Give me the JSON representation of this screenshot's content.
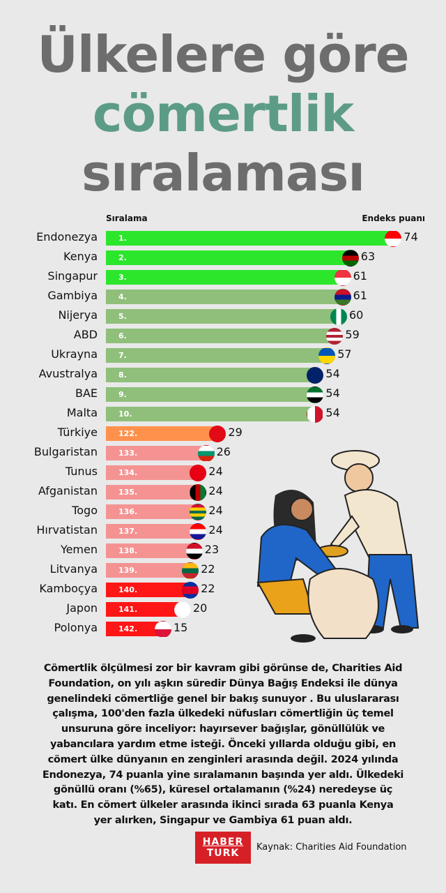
{
  "title": {
    "line1": "Ülkelere göre",
    "line2": "cömertlik",
    "line3": "sıralaması"
  },
  "colors": {
    "title_gray": "#6d6d6d",
    "title_teal": "#5c9c87",
    "top3": "#2ce62c",
    "top10": "#8fbf7a",
    "turkey": "#ff914d",
    "low": "#f59393",
    "bottom3": "#ff1616"
  },
  "chart_data": {
    "type": "bar",
    "orientation": "horizontal",
    "column_headers": {
      "rank": "Sıralama",
      "score": "Endeks puanı"
    },
    "rows": [
      {
        "country": "Endonezya",
        "rank": "1.",
        "value": 74,
        "color": "#2ce62c",
        "flag": [
          "#ff0000",
          "#ffffff"
        ]
      },
      {
        "country": "Kenya",
        "rank": "2.",
        "value": 63,
        "color": "#2ce62c",
        "flag": [
          "#000000",
          "#bb0000",
          "#006600"
        ]
      },
      {
        "country": "Singapur",
        "rank": "3.",
        "value": 61,
        "color": "#2ce62c",
        "flag": [
          "#ef3340",
          "#ffffff"
        ]
      },
      {
        "country": "Gambiya",
        "rank": "4.",
        "value": 61,
        "color": "#8fbf7a",
        "flag": [
          "#ce1126",
          "#0c1c8c",
          "#3a7728"
        ]
      },
      {
        "country": "Nijerya",
        "rank": "5.",
        "value": 60,
        "color": "#8fbf7a",
        "flag": [
          "#008751",
          "#ffffff",
          "#008751"
        ],
        "vertical": true
      },
      {
        "country": "ABD",
        "rank": "6.",
        "value": 59,
        "color": "#8fbf7a",
        "flag": [
          "#b22234",
          "#ffffff",
          "#b22234",
          "#ffffff",
          "#b22234"
        ]
      },
      {
        "country": "Ukrayna",
        "rank": "7.",
        "value": 57,
        "color": "#8fbf7a",
        "flag": [
          "#0057b7",
          "#ffd700"
        ]
      },
      {
        "country": "Avustralya",
        "rank": "8.",
        "value": 54,
        "color": "#8fbf7a",
        "flag": [
          "#012169",
          "#012169"
        ]
      },
      {
        "country": "BAE",
        "rank": "9.",
        "value": 54,
        "color": "#8fbf7a",
        "flag": [
          "#00732f",
          "#ffffff",
          "#000000"
        ]
      },
      {
        "country": "Malta",
        "rank": "10.",
        "value": 54,
        "color": "#8fbf7a",
        "flag": [
          "#ffffff",
          "#cf142b"
        ],
        "vertical": true
      },
      {
        "country": "Türkiye",
        "rank": "122.",
        "value": 29,
        "color": "#ff914d",
        "flag": [
          "#e30a17",
          "#e30a17"
        ]
      },
      {
        "country": "Bulgaristan",
        "rank": "133.",
        "value": 26,
        "color": "#f59393",
        "flag": [
          "#ffffff",
          "#00966e",
          "#d62612"
        ]
      },
      {
        "country": "Tunus",
        "rank": "134.",
        "value": 24,
        "color": "#f59393",
        "flag": [
          "#e70013",
          "#e70013"
        ]
      },
      {
        "country": "Afganistan",
        "rank": "135.",
        "value": 24,
        "color": "#f59393",
        "flag": [
          "#000000",
          "#be0000",
          "#007a36"
        ],
        "vertical": true
      },
      {
        "country": "Togo",
        "rank": "136.",
        "value": 24,
        "color": "#f59393",
        "flag": [
          "#d21034",
          "#ffce00",
          "#006a4e",
          "#ffce00",
          "#006a4e"
        ]
      },
      {
        "country": "Hırvatistan",
        "rank": "137.",
        "value": 24,
        "color": "#f59393",
        "flag": [
          "#ff0000",
          "#ffffff",
          "#171796"
        ]
      },
      {
        "country": "Yemen",
        "rank": "138.",
        "value": 23,
        "color": "#f59393",
        "flag": [
          "#ce1126",
          "#ffffff",
          "#000000"
        ]
      },
      {
        "country": "Litvanya",
        "rank": "139.",
        "value": 22,
        "color": "#f59393",
        "flag": [
          "#fdb913",
          "#006a44",
          "#c1272d"
        ]
      },
      {
        "country": "Kamboçya",
        "rank": "140.",
        "value": 22,
        "color": "#ff1616",
        "flag": [
          "#032ea1",
          "#e00025",
          "#e00025",
          "#032ea1"
        ]
      },
      {
        "country": "Japon",
        "rank": "141.",
        "value": 20,
        "color": "#ff1616",
        "flag": [
          "#ffffff",
          "#ffffff"
        ]
      },
      {
        "country": "Polonya",
        "rank": "142.",
        "value": 15,
        "color": "#ff1616",
        "flag": [
          "#ffffff",
          "#dc143c"
        ]
      }
    ]
  },
  "paragraph": [
    "Cömertlik ölçülmesi zor bir kavram gibi görünse de, Charities Aid",
    "Foundation, on yılı aşkın süredir Dünya Bağış Endeksi ile dünya",
    "genelindeki cömertliğe genel bir bakış sunuyor . Bu uluslararası",
    "çalışma, 100'den fazla ülkedeki nüfusları cömertliğin üç temel",
    "unsuruna göre inceliyor: hayırsever bağışlar, gönüllülük ve",
    "yabancılara yardım etme isteği. Önceki yıllarda olduğu gibi, en",
    "cömert ülke dünyanın en zenginleri arasında değil. 2024 yılında",
    "Endonezya, 74 puanla yine sıralamanın başında yer aldı. Ülkedeki",
    "gönüllü oranı (%65), küresel ortalamanın (%24) neredeyse üç",
    "katı. En cömert ülkeler arasında ikinci sırada 63 puanla Kenya",
    "yer alırken, Singapur ve Gambiya 61 puan aldı."
  ],
  "footer": {
    "logo_line1": "HABER",
    "logo_line2": "TURK",
    "source": "Kaynak: Charities Aid Foundation"
  }
}
